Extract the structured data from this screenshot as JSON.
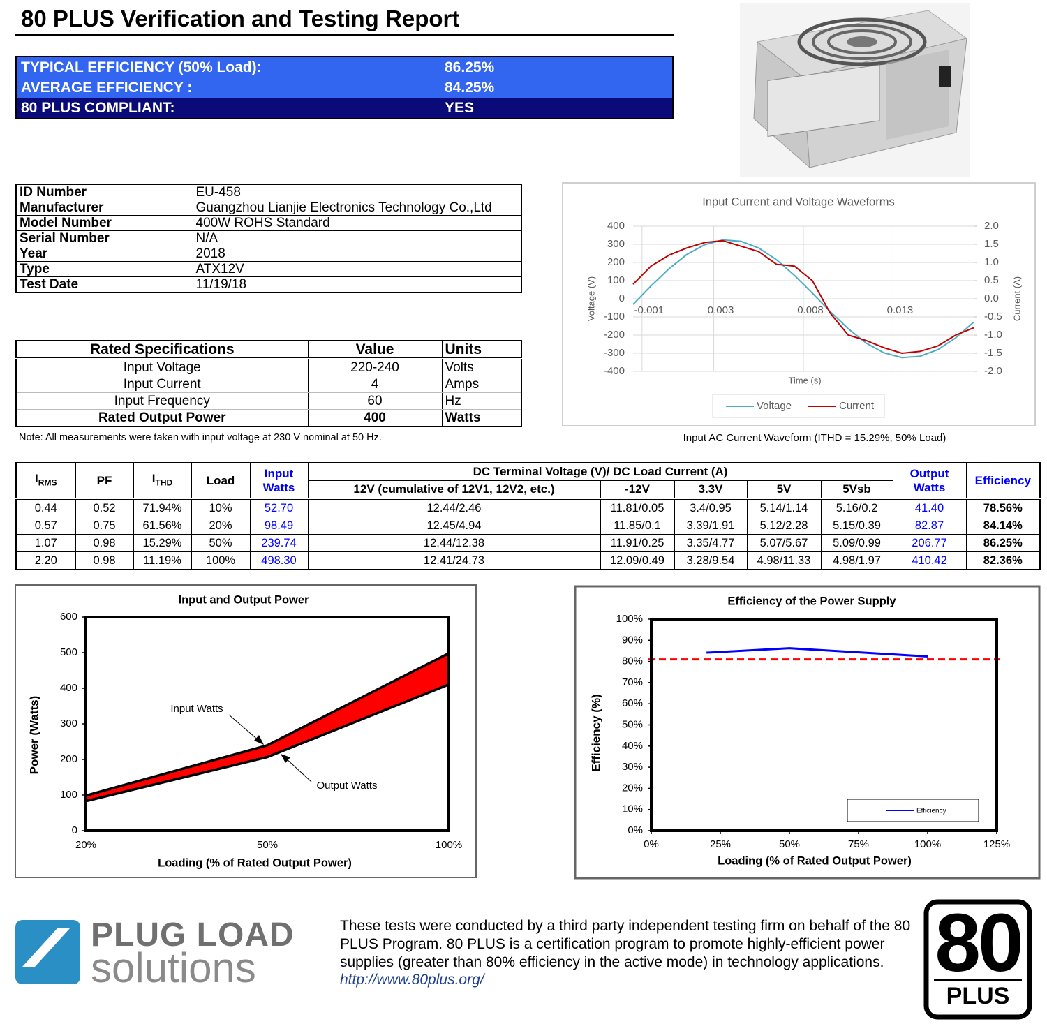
{
  "header": {
    "title": "80 PLUS Verification and Testing Report"
  },
  "summary": [
    [
      "TYPICAL EFFICIENCY (50% Load):",
      "86.25%"
    ],
    [
      "AVERAGE EFFICIENCY :",
      "84.25%"
    ],
    [
      "80 PLUS COMPLIANT:",
      "YES"
    ]
  ],
  "info": [
    [
      "ID Number",
      "EU-458"
    ],
    [
      "Manufacturer",
      "Guangzhou Lianjie Electronics Technology Co.,Ltd"
    ],
    [
      "Model Number",
      "400W ROHS Standard"
    ],
    [
      "Serial Number",
      "N/A"
    ],
    [
      "Year",
      "2018"
    ],
    [
      "Type",
      "ATX12V"
    ],
    [
      "Test Date",
      "11/19/18"
    ]
  ],
  "specs": {
    "header": [
      "Rated Specifications",
      "Value",
      "Units"
    ],
    "rows": [
      [
        "Input Voltage",
        "220-240",
        "Volts"
      ],
      [
        "Input Current",
        "4",
        "Amps"
      ],
      [
        "Input Frequency",
        "60",
        "Hz"
      ],
      [
        "Rated Output Power",
        "400",
        "Watts"
      ]
    ]
  },
  "note": "Note: All measurements were taken with input voltage at 230 V nominal at 50 Hz.",
  "waveform_caption": "Input AC Current Waveform (ITHD = 15.29%, 50% Load)",
  "results": {
    "columns": [
      [
        "I",
        "RMS"
      ],
      "PF",
      [
        "I",
        "THD"
      ],
      "Load",
      "Input Watts",
      "DC Terminal Voltage (V)/ DC Load Current (A)",
      "Output Watts",
      "Efficiency"
    ],
    "subcolumns": [
      "12V (cumulative of 12V1, 12V2, etc.)",
      "-12V",
      "3.3V",
      "5V",
      "5Vsb"
    ],
    "rows": [
      [
        "0.44",
        "0.52",
        "71.94%",
        "10%",
        "52.70",
        "12.44/2.46",
        "11.81/0.05",
        "3.4/0.95",
        "5.14/1.14",
        "5.16/0.2",
        "41.40",
        "78.56%"
      ],
      [
        "0.57",
        "0.75",
        "61.56%",
        "20%",
        "98.49",
        "12.45/4.94",
        "11.85/0.1",
        "3.39/1.91",
        "5.12/2.28",
        "5.15/0.39",
        "82.87",
        "84.14%"
      ],
      [
        "1.07",
        "0.98",
        "15.29%",
        "50%",
        "239.74",
        "12.44/12.38",
        "11.91/0.25",
        "3.35/4.77",
        "5.07/5.67",
        "5.09/0.99",
        "206.77",
        "86.25%"
      ],
      [
        "2.20",
        "0.98",
        "11.19%",
        "100%",
        "498.30",
        "12.41/24.73",
        "12.09/0.49",
        "3.28/9.54",
        "4.98/11.33",
        "4.98/1.97",
        "410.42",
        "82.36%"
      ]
    ]
  },
  "chart_data": [
    {
      "type": "line",
      "title": "Input Current and Voltage Waveforms",
      "x_label": "Time (s)",
      "y_label": "Voltage (V)",
      "y2_label": "Current (A)",
      "x": [
        -0.0015,
        -0.0005,
        0.0005,
        0.0015,
        0.0025,
        0.0035,
        0.0045,
        0.0055,
        0.0065,
        0.0075,
        0.0085,
        0.0095,
        0.0105,
        0.0115,
        0.0125,
        0.0135,
        0.0145,
        0.0155,
        0.0165,
        0.0175
      ],
      "xlim": [
        -0.0015,
        0.0175
      ],
      "xticks": [
        -0.001,
        0.003,
        0.008,
        0.013
      ],
      "ylim": [
        -400,
        400
      ],
      "yticks": [
        -400,
        -300,
        -200,
        -100,
        0,
        100,
        200,
        300,
        400
      ],
      "y2lim": [
        -2,
        2
      ],
      "y2ticks": [
        {
          "value": -2,
          "label": "-2.0"
        },
        -1.5,
        {
          "value": -1,
          "label": "-1.0"
        },
        -0.5,
        {
          "value": 0,
          "label": "0.0"
        },
        0.5,
        {
          "value": 1,
          "label": "1.0"
        },
        1.5,
        {
          "value": 2,
          "label": "2.0"
        }
      ],
      "grid": true,
      "legend": "bottom",
      "series": [
        {
          "name": "Voltage",
          "color": "#4bacc6",
          "values": [
            -31,
            71,
            165,
            244,
            298,
            324,
            317,
            280,
            215,
            129,
            31,
            -71,
            -165,
            -244,
            -298,
            -324,
            -317,
            -280,
            -215,
            -129
          ]
        },
        {
          "name": "Current",
          "color": "#c00000",
          "axis": "y2",
          "values": [
            0.4,
            0.9,
            1.2,
            1.4,
            1.55,
            1.6,
            1.45,
            1.3,
            0.95,
            0.9,
            0.5,
            -0.4,
            -1.0,
            -1.15,
            -1.35,
            -1.5,
            -1.45,
            -1.3,
            -1.0,
            -0.8
          ]
        }
      ]
    },
    {
      "type": "area",
      "title": "Input and Output Power",
      "x_label": "Loading (% of Rated Output Power)",
      "y_label": "Power (Watts)",
      "categories": [
        "20%",
        "50%",
        "100%"
      ],
      "ylim": [
        0,
        600
      ],
      "yticks": [
        0,
        100,
        200,
        300,
        400,
        500,
        600
      ],
      "fill_color": "#ff0000",
      "series": [
        {
          "name": "Input Watts",
          "color": "#000000",
          "values": [
            98.49,
            239.74,
            498.3
          ]
        },
        {
          "name": "Output Watts",
          "color": "#000000",
          "values": [
            82.87,
            206.77,
            410.42
          ]
        }
      ]
    },
    {
      "type": "line",
      "title": "Efficiency of the Power Supply",
      "x_label": "Loading (% of Rated Output Power)",
      "y_label": "Efficiency (%)",
      "x": [
        20,
        50,
        100
      ],
      "xlim": [
        0,
        125
      ],
      "xticks": [
        {
          "value": 0,
          "label": "0%"
        },
        {
          "value": 25,
          "label": "25%"
        },
        {
          "value": 50,
          "label": "50%"
        },
        {
          "value": 75,
          "label": "75%"
        },
        {
          "value": 100,
          "label": "100%"
        },
        {
          "value": 125,
          "label": "125%"
        }
      ],
      "ylim": [
        0,
        100
      ],
      "yticks": [
        {
          "value": 0,
          "label": "0%"
        },
        {
          "value": 10,
          "label": "10%"
        },
        {
          "value": 20,
          "label": "20%"
        },
        {
          "value": 30,
          "label": "30%"
        },
        {
          "value": 40,
          "label": "40%"
        },
        {
          "value": 50,
          "label": "50%"
        },
        {
          "value": 60,
          "label": "60%"
        },
        {
          "value": 70,
          "label": "70%"
        },
        {
          "value": 80,
          "label": "80%"
        },
        {
          "value": 90,
          "label": "90%"
        },
        {
          "value": 100,
          "label": "100%"
        }
      ],
      "reference_line": {
        "value": 81,
        "color": "#ff0000"
      },
      "legend": "bottom-right",
      "series": [
        {
          "name": "Efficiency",
          "color": "#0000ff",
          "values": [
            84.14,
            86.25,
            82.36
          ]
        }
      ]
    }
  ],
  "footer": {
    "logo_line1": "PLUG LOAD",
    "logo_line2": "solutions",
    "text": "These tests were conducted by a third party independent testing firm on behalf of the 80 PLUS Program. 80 PLUS is a certification program to promote highly-efficient power supplies (greater than 80% efficiency in the active mode) in technology applications.",
    "link": "http://www.80plus.org/",
    "badge_number": "80",
    "badge_text": "PLUS"
  }
}
